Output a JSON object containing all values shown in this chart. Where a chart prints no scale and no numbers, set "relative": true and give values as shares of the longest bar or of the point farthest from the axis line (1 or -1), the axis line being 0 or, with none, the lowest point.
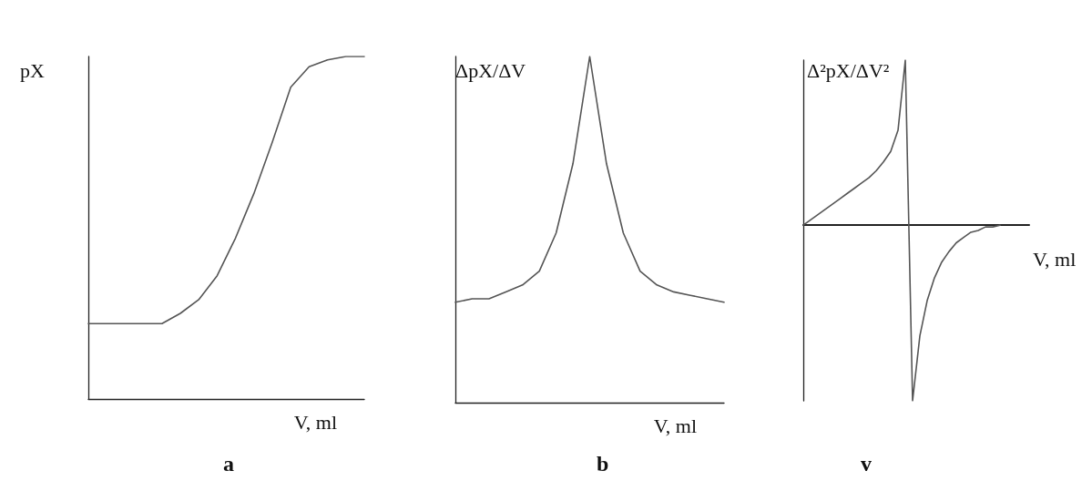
{
  "chart_data": [
    {
      "type": "line",
      "title": "a",
      "xlabel": "V, ml",
      "ylabel": "pX",
      "relative": true,
      "color": "#555555",
      "categories": [
        null,
        null,
        null,
        null,
        null,
        null,
        null,
        null,
        null,
        null,
        null,
        null,
        null,
        null,
        null,
        null
      ],
      "values": [
        0.22,
        0.22,
        0.22,
        0.22,
        0.22,
        0.25,
        0.29,
        0.36,
        0.47,
        0.6,
        0.75,
        0.91,
        0.97,
        0.99,
        1.0,
        1.0
      ]
    },
    {
      "type": "line",
      "title": "b",
      "xlabel": "V, ml",
      "ylabel": "ΔpX/ΔV",
      "relative": true,
      "color": "#555555",
      "categories": [
        null,
        null,
        null,
        null,
        null,
        null,
        null,
        null,
        null,
        null,
        null,
        null,
        null,
        null,
        null,
        null,
        null
      ],
      "values": [
        0.29,
        0.3,
        0.3,
        0.32,
        0.34,
        0.38,
        0.49,
        0.69,
        1.0,
        0.69,
        0.49,
        0.38,
        0.34,
        0.32,
        0.31,
        0.3,
        0.29
      ]
    },
    {
      "type": "line",
      "title": "v",
      "xlabel": "V, ml",
      "ylabel": "Δ²pX/ΔV²",
      "relative": true,
      "color": "#555555",
      "categories": [
        null,
        null,
        null,
        null,
        null,
        null,
        null,
        null,
        null,
        null,
        null,
        null,
        null,
        null,
        null,
        null,
        null,
        null,
        null,
        null,
        null,
        null,
        null,
        null,
        null,
        null,
        null,
        null,
        null,
        null,
        null,
        null
      ],
      "values": [
        0,
        0.03,
        0.06,
        0.09,
        0.12,
        0.15,
        0.18,
        0.21,
        0.24,
        0.27,
        0.31,
        0.36,
        0.42,
        0.54,
        0.94,
        -1,
        -0.63,
        -0.43,
        -0.3,
        -0.21,
        -0.15,
        -0.1,
        -0.07,
        -0.04,
        -0.03,
        -0.01,
        -0.01,
        0,
        null,
        null,
        null,
        null
      ]
    }
  ]
}
